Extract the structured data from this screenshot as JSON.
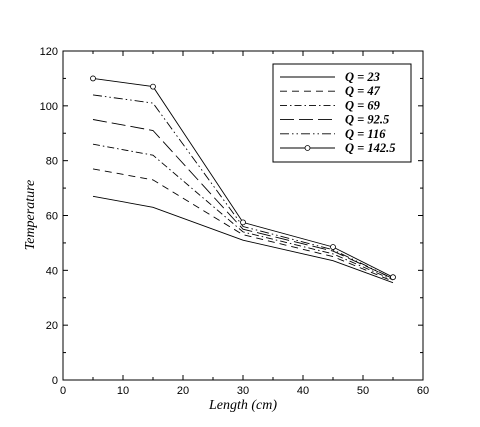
{
  "chart_data": {
    "type": "line",
    "title": "",
    "xlabel": "Length (cm)",
    "ylabel": "Temperature",
    "xlim": [
      0,
      60
    ],
    "ylim": [
      0,
      120
    ],
    "xticks": [
      0,
      10,
      20,
      30,
      40,
      50,
      60
    ],
    "yticks": [
      0,
      20,
      40,
      60,
      80,
      100,
      120
    ],
    "grid": false,
    "legend_position": "top-right",
    "x": [
      5,
      15,
      30,
      45,
      55
    ],
    "series": [
      {
        "name": "Q = 23",
        "values": [
          67,
          63,
          51,
          43.5,
          35.5
        ],
        "dash": "",
        "markers": false
      },
      {
        "name": "Q = 47",
        "values": [
          77,
          73,
          53,
          45,
          36
        ],
        "dash": "7,5",
        "markers": false
      },
      {
        "name": "Q = 69",
        "values": [
          86,
          82,
          54,
          46,
          36.5
        ],
        "dash": "7,3,1.5,3",
        "markers": false
      },
      {
        "name": "Q = 92.5",
        "values": [
          95,
          91,
          55,
          47,
          37
        ],
        "dash": "14,5",
        "markers": false
      },
      {
        "name": "Q = 116",
        "values": [
          104,
          101,
          56,
          47.5,
          37
        ],
        "dash": "9,3,1.5,3,1.5,3",
        "markers": false
      },
      {
        "name": "Q = 142.5",
        "values": [
          110,
          107,
          57.5,
          48.5,
          37.5
        ],
        "dash": "",
        "markers": true
      }
    ]
  }
}
